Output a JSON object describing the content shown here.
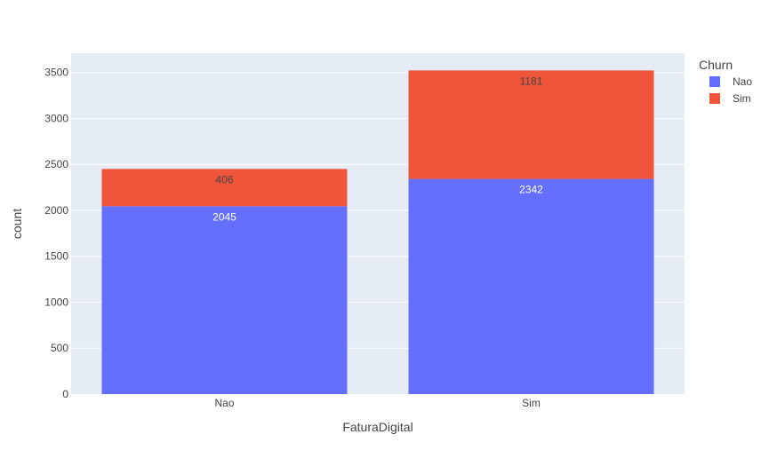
{
  "chart_data": {
    "type": "bar",
    "barmode": "stack",
    "categories": [
      "Nao",
      "Sim"
    ],
    "series": [
      {
        "name": "Nao",
        "values": [
          2045,
          2342
        ],
        "color": "#636efa",
        "label_color": "#ffffff"
      },
      {
        "name": "Sim",
        "values": [
          406,
          1181
        ],
        "color": "#ef553b",
        "label_color": "#444444"
      }
    ],
    "xlabel": "FaturaDigital",
    "ylabel": "count",
    "ylim": [
      0,
      3710
    ],
    "yticks": [
      0,
      500,
      1000,
      1500,
      2000,
      2500,
      3000,
      3500
    ],
    "legend_title": "Churn",
    "legend_position": "top-right",
    "plot_bgcolor": "#e5ecf6",
    "grid": true
  }
}
